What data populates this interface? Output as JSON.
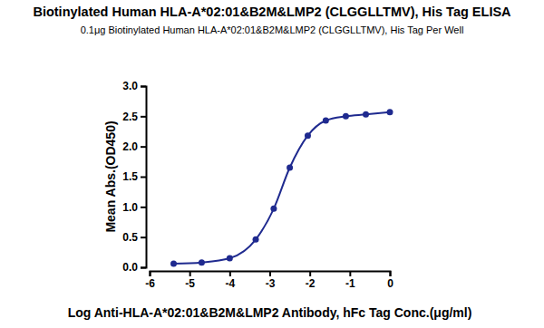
{
  "chart_data": {
    "type": "line",
    "title": "Biotinylated Human HLA-A*02:01&B2M&LMP2 (CLGGLLTMV), His Tag ELISA",
    "subtitle": "0.1μg Biotinylated Human HLA-A*02:01&B2M&LMP2 (CLGGLLTMV), His Tag Per Well",
    "x_label": "Log Anti-HLA-A*02:01&B2M&LMP2 Antibody, hFc Tag Conc.(μg/ml)",
    "y_label": "Mean Abs.(OD450)",
    "x": [
      -5.4,
      -4.7,
      -4.0,
      -3.35,
      -2.9,
      -2.5,
      -2.05,
      -1.6,
      -1.1,
      -0.6,
      0
    ],
    "series": [
      {
        "name": "HLA-A*02:01&B2M&LMP2",
        "color": "#1f2a8f",
        "marker": "circle",
        "values": [
          0.06,
          0.08,
          0.15,
          0.46,
          0.97,
          1.65,
          2.18,
          2.43,
          2.5,
          2.53,
          2.57
        ]
      }
    ],
    "xlim": [
      -6,
      0
    ],
    "xticks": [
      -6,
      -5,
      -4,
      -3,
      -2,
      -1,
      0
    ],
    "ylim": [
      0,
      3
    ],
    "yticks": [
      {
        "value": 0,
        "label": "0.0"
      },
      0.5,
      {
        "value": 1,
        "label": "1.0"
      },
      1.5,
      {
        "value": 2,
        "label": "2.0"
      },
      2.5,
      {
        "value": 3,
        "label": "3.0"
      }
    ],
    "grid": false
  }
}
